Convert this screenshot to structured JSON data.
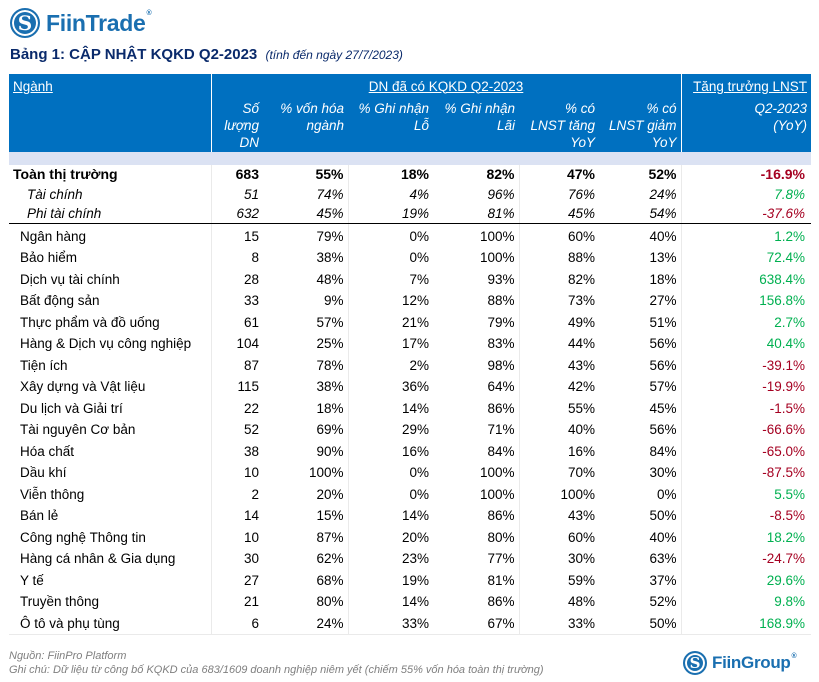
{
  "brand": {
    "top_logo_text": "FiinTrade",
    "top_logo_mark": "S",
    "registered": "®",
    "bottom_logo_text": "FiinGroup",
    "bottom_logo_mark": "S",
    "brand_color": "#1a6fb0"
  },
  "title": {
    "main": "Bảng 1: CẬP NHẬT KQKD Q2-2023",
    "sub": "(tính đến ngày 27/7/2023)"
  },
  "table": {
    "header": {
      "sector": "Ngành",
      "group_reported": "DN đã có KQKD Q2-2023",
      "group_growth": "Tăng trưởng LNST",
      "columns": [
        [
          "Số",
          "lượng",
          "DN"
        ],
        [
          "% vốn hóa",
          "ngành"
        ],
        [
          "% Ghi nhận",
          "Lỗ"
        ],
        [
          "% Ghi nhận",
          "Lãi"
        ],
        [
          "% có",
          "LNST tăng",
          "YoY"
        ],
        [
          "% có",
          "LNST giảm",
          "YoY"
        ],
        [
          "Q2-2023",
          "(YoY)"
        ]
      ]
    },
    "summary_rows": [
      {
        "name": "Toàn thị trường",
        "count": "683",
        "cap": "55%",
        "loss": "18%",
        "profit": "82%",
        "up": "47%",
        "down": "52%",
        "growth": "-16.9%",
        "trend": "neg"
      },
      {
        "name": "Tài chính",
        "count": "51",
        "cap": "74%",
        "loss": "4%",
        "profit": "96%",
        "up": "76%",
        "down": "24%",
        "growth": "7.8%",
        "trend": "pos"
      },
      {
        "name": "Phi tài chính",
        "count": "632",
        "cap": "45%",
        "loss": "19%",
        "profit": "81%",
        "up": "45%",
        "down": "54%",
        "growth": "-37.6%",
        "trend": "neg"
      }
    ],
    "sector_rows": [
      {
        "name": "Ngân hàng",
        "count": "15",
        "cap": "79%",
        "loss": "0%",
        "profit": "100%",
        "up": "60%",
        "down": "40%",
        "growth": "1.2%",
        "trend": "pos"
      },
      {
        "name": "Bảo hiểm",
        "count": "8",
        "cap": "38%",
        "loss": "0%",
        "profit": "100%",
        "up": "88%",
        "down": "13%",
        "growth": "72.4%",
        "trend": "pos"
      },
      {
        "name": "Dịch vụ tài chính",
        "count": "28",
        "cap": "48%",
        "loss": "7%",
        "profit": "93%",
        "up": "82%",
        "down": "18%",
        "growth": "638.4%",
        "trend": "pos"
      },
      {
        "name": "Bất động sản",
        "count": "33",
        "cap": "9%",
        "loss": "12%",
        "profit": "88%",
        "up": "73%",
        "down": "27%",
        "growth": "156.8%",
        "trend": "pos"
      },
      {
        "name": "Thực phẩm và đồ uống",
        "count": "61",
        "cap": "57%",
        "loss": "21%",
        "profit": "79%",
        "up": "49%",
        "down": "51%",
        "growth": "2.7%",
        "trend": "pos"
      },
      {
        "name": "Hàng & Dịch vụ công nghiệp",
        "count": "104",
        "cap": "25%",
        "loss": "17%",
        "profit": "83%",
        "up": "44%",
        "down": "56%",
        "growth": "40.4%",
        "trend": "pos"
      },
      {
        "name": "Tiện ích",
        "count": "87",
        "cap": "78%",
        "loss": "2%",
        "profit": "98%",
        "up": "43%",
        "down": "56%",
        "growth": "-39.1%",
        "trend": "neg"
      },
      {
        "name": "Xây dựng và Vật liệu",
        "count": "115",
        "cap": "38%",
        "loss": "36%",
        "profit": "64%",
        "up": "42%",
        "down": "57%",
        "growth": "-19.9%",
        "trend": "neg"
      },
      {
        "name": "Du lịch và Giải trí",
        "count": "22",
        "cap": "18%",
        "loss": "14%",
        "profit": "86%",
        "up": "55%",
        "down": "45%",
        "growth": "-1.5%",
        "trend": "neg"
      },
      {
        "name": "Tài nguyên Cơ bản",
        "count": "52",
        "cap": "69%",
        "loss": "29%",
        "profit": "71%",
        "up": "40%",
        "down": "56%",
        "growth": "-66.6%",
        "trend": "neg"
      },
      {
        "name": "Hóa chất",
        "count": "38",
        "cap": "90%",
        "loss": "16%",
        "profit": "84%",
        "up": "16%",
        "down": "84%",
        "growth": "-65.0%",
        "trend": "neg"
      },
      {
        "name": "Dầu khí",
        "count": "10",
        "cap": "100%",
        "loss": "0%",
        "profit": "100%",
        "up": "70%",
        "down": "30%",
        "growth": "-87.5%",
        "trend": "neg"
      },
      {
        "name": "Viễn thông",
        "count": "2",
        "cap": "20%",
        "loss": "0%",
        "profit": "100%",
        "up": "100%",
        "down": "0%",
        "growth": "5.5%",
        "trend": "pos"
      },
      {
        "name": "Bán lẻ",
        "count": "14",
        "cap": "15%",
        "loss": "14%",
        "profit": "86%",
        "up": "43%",
        "down": "50%",
        "growth": "-8.5%",
        "trend": "neg"
      },
      {
        "name": "Công nghệ Thông tin",
        "count": "10",
        "cap": "87%",
        "loss": "20%",
        "profit": "80%",
        "up": "60%",
        "down": "40%",
        "growth": "18.2%",
        "trend": "pos"
      },
      {
        "name": "Hàng cá nhân & Gia dụng",
        "count": "30",
        "cap": "62%",
        "loss": "23%",
        "profit": "77%",
        "up": "30%",
        "down": "63%",
        "growth": "-24.7%",
        "trend": "neg"
      },
      {
        "name": "Y tế",
        "count": "27",
        "cap": "68%",
        "loss": "19%",
        "profit": "81%",
        "up": "59%",
        "down": "37%",
        "growth": "29.6%",
        "trend": "pos"
      },
      {
        "name": "Truyền thông",
        "count": "21",
        "cap": "80%",
        "loss": "14%",
        "profit": "86%",
        "up": "48%",
        "down": "52%",
        "growth": "9.8%",
        "trend": "pos"
      },
      {
        "name": "Ô tô và phụ tùng",
        "count": "6",
        "cap": "24%",
        "loss": "33%",
        "profit": "67%",
        "up": "33%",
        "down": "50%",
        "growth": "168.9%",
        "trend": "pos"
      }
    ]
  },
  "footer": {
    "source": "Nguồn: FiinPro Platform",
    "note": "Ghi chú: Dữ liệu từ công bố KQKD của 683/1609 doanh nghiệp niêm yết (chiếm 55% vốn hóa toàn thị trường)"
  },
  "colors": {
    "header_bg": "#0070c0",
    "band_bg": "#dbe2f3",
    "negative": "#a50021",
    "positive": "#00b050",
    "title": "#0a2a6b"
  }
}
